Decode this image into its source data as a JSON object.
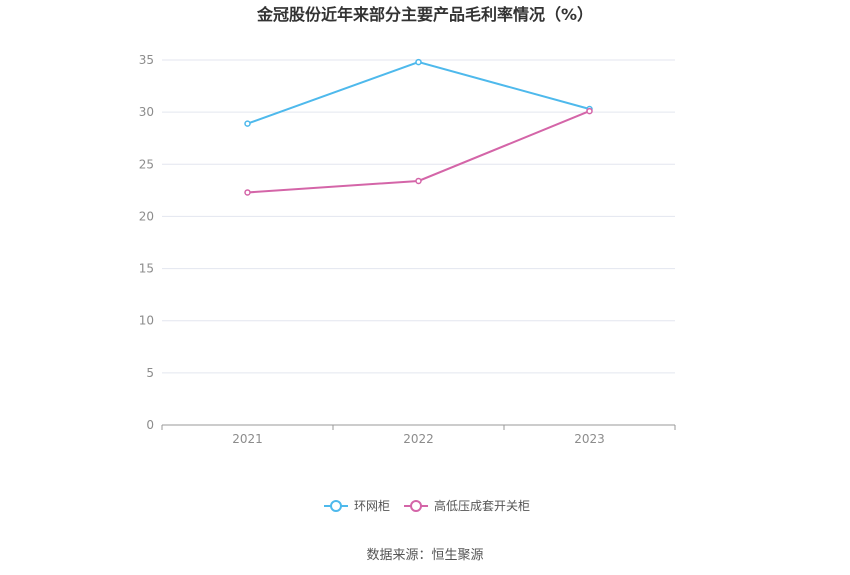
{
  "chart_data": {
    "type": "line",
    "title": "金冠股份近年来部分主要产品毛利率情况（%）",
    "categories": [
      "2021",
      "2022",
      "2023"
    ],
    "series": [
      {
        "name": "环网柜",
        "values": [
          28.9,
          34.8,
          30.3
        ],
        "color": "#4eb9ec"
      },
      {
        "name": "高低压成套开关柜",
        "values": [
          22.3,
          23.4,
          30.1
        ],
        "color": "#d465a8"
      }
    ],
    "ylim": [
      0,
      35
    ],
    "yticks": [
      0,
      5,
      10,
      15,
      20,
      25,
      30,
      35
    ],
    "grid": true,
    "legend": "bottom-center",
    "source": "数据来源：恒生聚源"
  }
}
